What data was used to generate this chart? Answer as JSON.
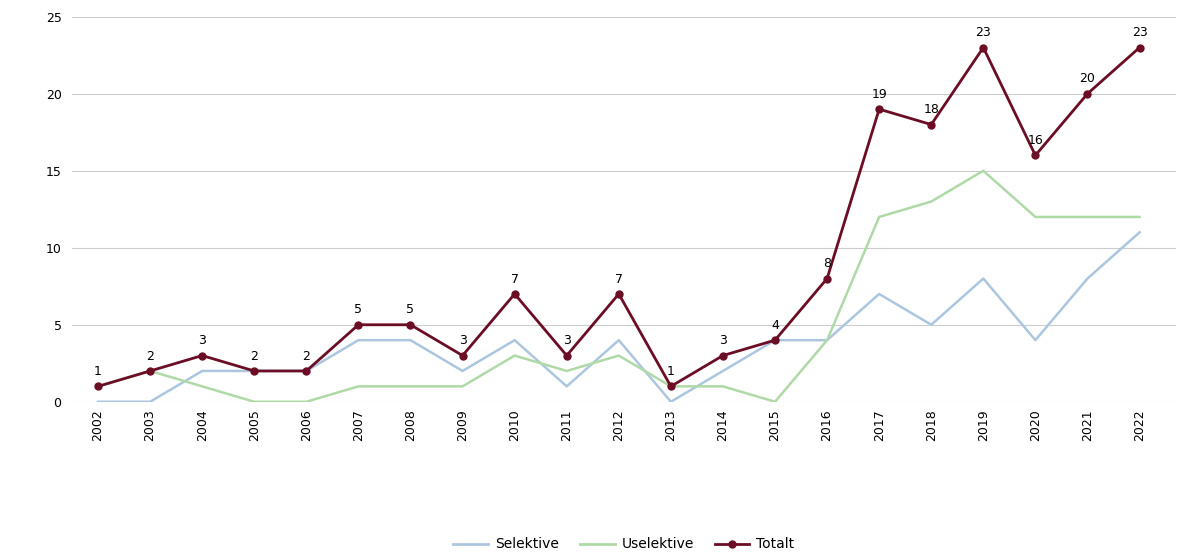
{
  "years": [
    2002,
    2003,
    2004,
    2005,
    2006,
    2007,
    2008,
    2009,
    2010,
    2011,
    2012,
    2013,
    2014,
    2015,
    2016,
    2017,
    2018,
    2019,
    2020,
    2021,
    2022
  ],
  "selektive": [
    0,
    0,
    2,
    2,
    2,
    4,
    4,
    2,
    4,
    1,
    4,
    0,
    2,
    4,
    4,
    7,
    5,
    8,
    4,
    8,
    11
  ],
  "uselektive": [
    1,
    2,
    1,
    0,
    0,
    1,
    1,
    1,
    3,
    2,
    3,
    1,
    1,
    0,
    4,
    12,
    13,
    15,
    12,
    12,
    12
  ],
  "totalt": [
    1,
    2,
    3,
    2,
    2,
    5,
    5,
    3,
    7,
    3,
    7,
    1,
    3,
    4,
    8,
    19,
    18,
    23,
    16,
    20,
    23
  ],
  "selektive_color": "#adc6e0",
  "uselektive_color": "#b0d9a8",
  "totalt_color": "#6b0d25",
  "background_color": "#ffffff",
  "ylim": [
    0,
    25
  ],
  "yticks": [
    0,
    5,
    10,
    15,
    20,
    25
  ],
  "grid_yticks": [
    5,
    10,
    15,
    20,
    25
  ],
  "legend_labels": [
    "Selektive",
    "Uselektive",
    "Totalt"
  ],
  "figsize": [
    12.0,
    5.58
  ],
  "dpi": 100
}
